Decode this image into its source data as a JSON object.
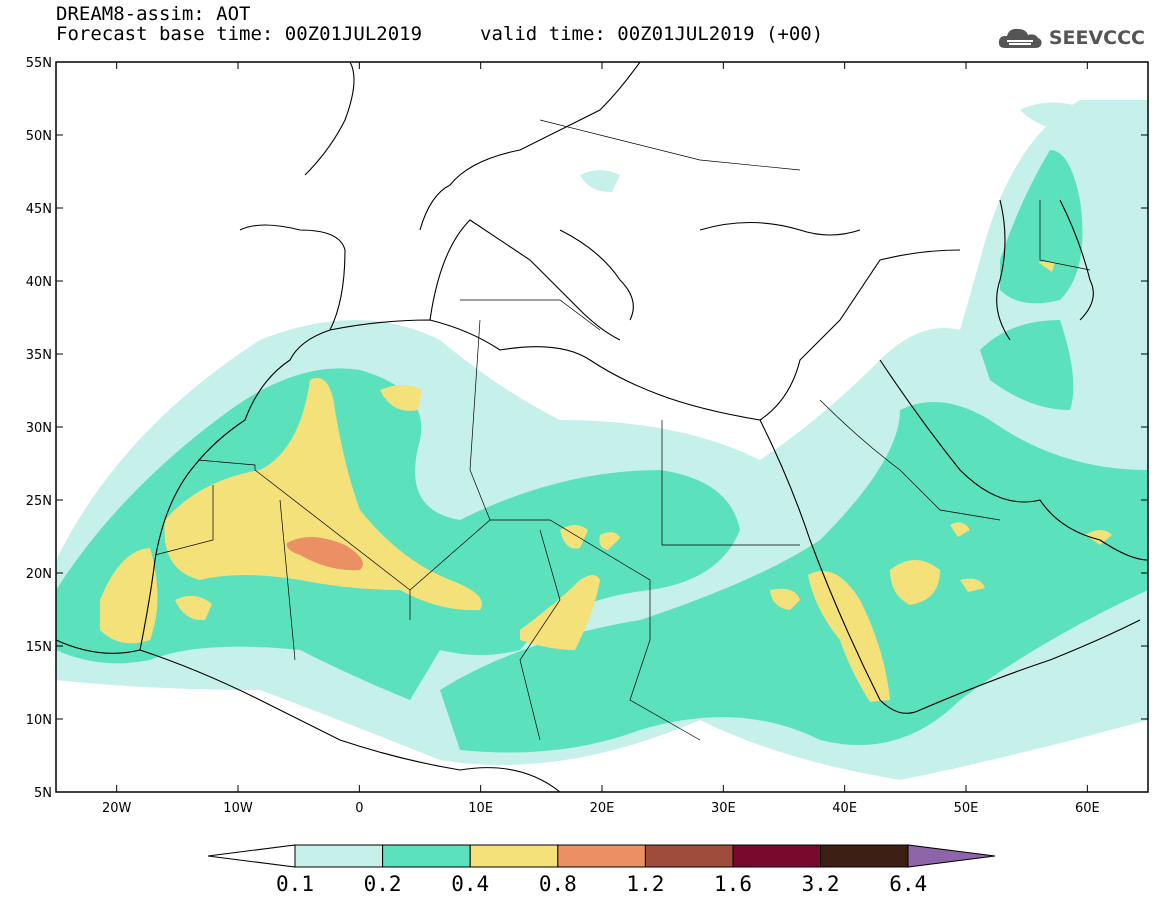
{
  "header": {
    "line1": "DREAM8-assim: AOT",
    "base_time": "Forecast base time: 00Z01JUL2019",
    "valid_time": "valid time: 00Z01JUL2019 (+00)"
  },
  "logo": {
    "text": "SEEVCCC",
    "icon": "cloud-icon"
  },
  "map": {
    "lon_range": [
      -25,
      65
    ],
    "lat_range": [
      5,
      55
    ],
    "lon_ticks": [
      "20W",
      "10W",
      "0",
      "10E",
      "20E",
      "30E",
      "40E",
      "50E",
      "60E"
    ],
    "lat_ticks": [
      "55N",
      "50N",
      "45N",
      "40N",
      "35N",
      "30N",
      "25N",
      "20N",
      "15N",
      "10N",
      "5N"
    ]
  },
  "colorbar": {
    "levels": [
      "0.1",
      "0.2",
      "0.4",
      "0.8",
      "1.2",
      "1.6",
      "3.2",
      "6.4"
    ],
    "colors": [
      "#ffffff",
      "#c6f1ea",
      "#5ce1bd",
      "#f5e17a",
      "#eb9065",
      "#a04c3c",
      "#7a0a2d",
      "#3d1f13",
      "#8e65a8"
    ]
  }
}
